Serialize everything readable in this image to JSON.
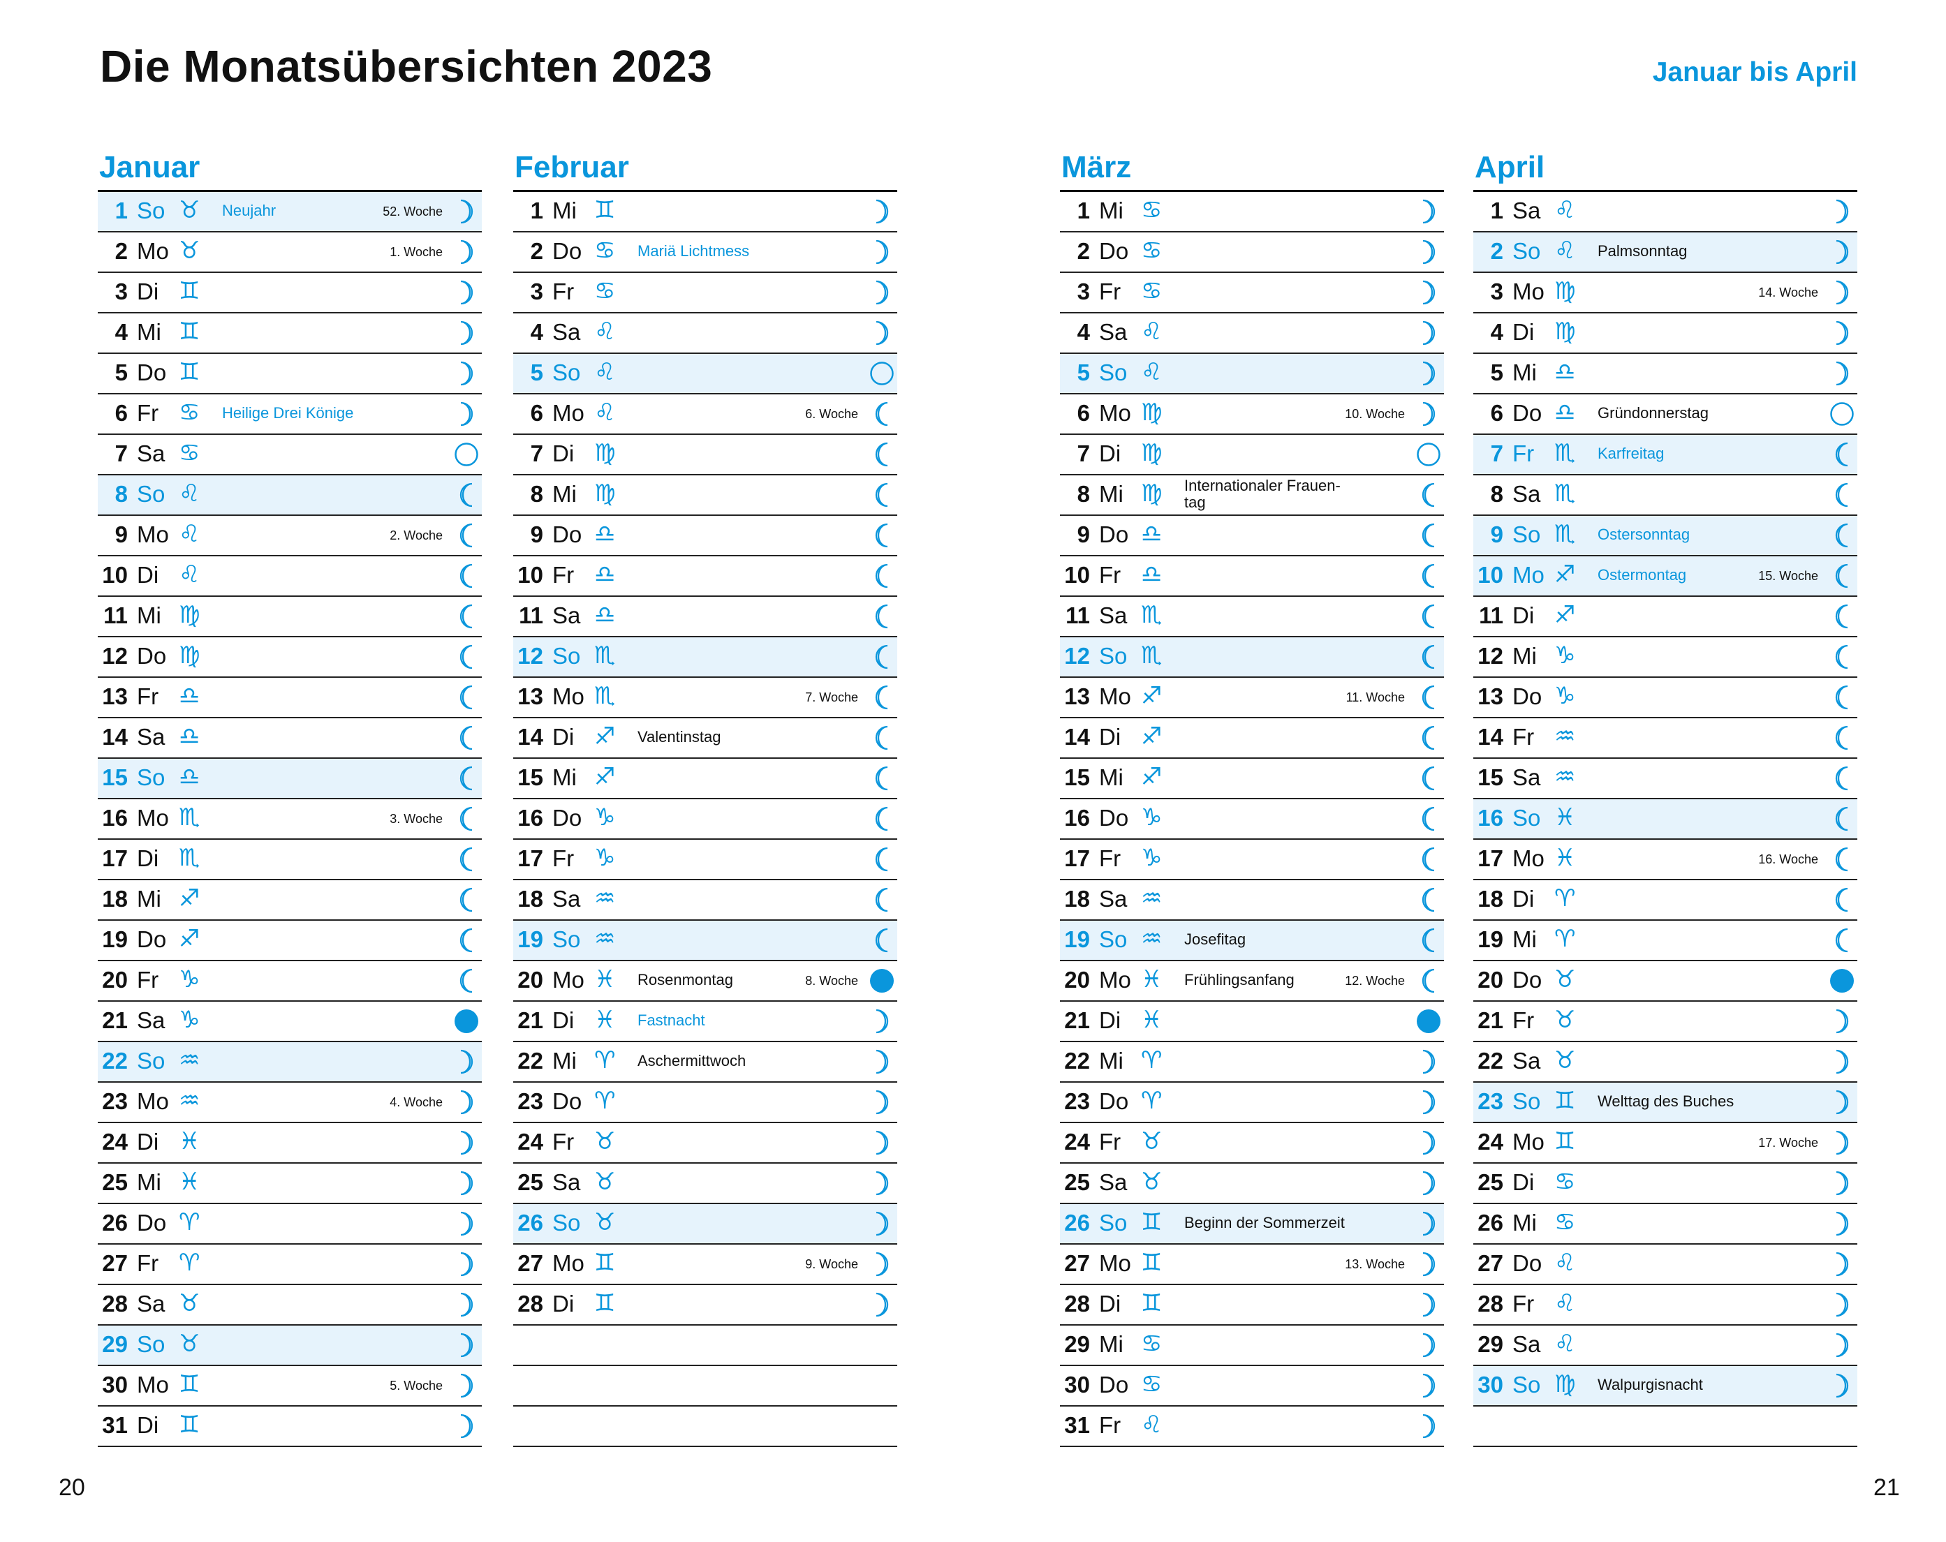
{
  "title": "Die Monatsübersichten 2023",
  "range": "Januar bis April",
  "page_left": "20",
  "page_right": "21",
  "accent_color": "#0a96dc",
  "highlight_color": "#e6f3fc",
  "months": [
    {
      "name": "Januar",
      "days": [
        {
          "d": "1",
          "wd": "So",
          "sign": "taurus",
          "moon": "waxing",
          "event": "Neujahr",
          "event_blue": true,
          "week": "52. Woche",
          "hl": true
        },
        {
          "d": "2",
          "wd": "Mo",
          "sign": "taurus",
          "moon": "waxing",
          "week": "1. Woche"
        },
        {
          "d": "3",
          "wd": "Di",
          "sign": "gemini",
          "moon": "waxing"
        },
        {
          "d": "4",
          "wd": "Mi",
          "sign": "gemini",
          "moon": "waxing"
        },
        {
          "d": "5",
          "wd": "Do",
          "sign": "gemini",
          "moon": "waxing"
        },
        {
          "d": "6",
          "wd": "Fr",
          "sign": "cancer",
          "moon": "waxing",
          "event": "Heilige Drei Könige",
          "event_blue": true
        },
        {
          "d": "7",
          "wd": "Sa",
          "sign": "cancer",
          "moon": "full"
        },
        {
          "d": "8",
          "wd": "So",
          "sign": "leo",
          "moon": "waning",
          "hl": true
        },
        {
          "d": "9",
          "wd": "Mo",
          "sign": "leo",
          "moon": "waning",
          "week": "2. Woche"
        },
        {
          "d": "10",
          "wd": "Di",
          "sign": "leo",
          "moon": "waning"
        },
        {
          "d": "11",
          "wd": "Mi",
          "sign": "virgo",
          "moon": "waning"
        },
        {
          "d": "12",
          "wd": "Do",
          "sign": "virgo",
          "moon": "waning"
        },
        {
          "d": "13",
          "wd": "Fr",
          "sign": "libra",
          "moon": "waning"
        },
        {
          "d": "14",
          "wd": "Sa",
          "sign": "libra",
          "moon": "waning"
        },
        {
          "d": "15",
          "wd": "So",
          "sign": "libra",
          "moon": "waning",
          "hl": true
        },
        {
          "d": "16",
          "wd": "Mo",
          "sign": "scorpio",
          "moon": "waning",
          "week": "3. Woche"
        },
        {
          "d": "17",
          "wd": "Di",
          "sign": "scorpio",
          "moon": "waning"
        },
        {
          "d": "18",
          "wd": "Mi",
          "sign": "sagittarius",
          "moon": "waning"
        },
        {
          "d": "19",
          "wd": "Do",
          "sign": "sagittarius",
          "moon": "waning"
        },
        {
          "d": "20",
          "wd": "Fr",
          "sign": "capricorn",
          "moon": "waning"
        },
        {
          "d": "21",
          "wd": "Sa",
          "sign": "capricorn",
          "moon": "new"
        },
        {
          "d": "22",
          "wd": "So",
          "sign": "aquarius",
          "moon": "waxing",
          "hl": true
        },
        {
          "d": "23",
          "wd": "Mo",
          "sign": "aquarius",
          "moon": "waxing",
          "week": "4. Woche"
        },
        {
          "d": "24",
          "wd": "Di",
          "sign": "pisces",
          "moon": "waxing"
        },
        {
          "d": "25",
          "wd": "Mi",
          "sign": "pisces",
          "moon": "waxing"
        },
        {
          "d": "26",
          "wd": "Do",
          "sign": "aries",
          "moon": "waxing"
        },
        {
          "d": "27",
          "wd": "Fr",
          "sign": "aries",
          "moon": "waxing"
        },
        {
          "d": "28",
          "wd": "Sa",
          "sign": "taurus",
          "moon": "waxing"
        },
        {
          "d": "29",
          "wd": "So",
          "sign": "taurus",
          "moon": "waxing",
          "hl": true
        },
        {
          "d": "30",
          "wd": "Mo",
          "sign": "gemini",
          "moon": "waxing",
          "week": "5. Woche"
        },
        {
          "d": "31",
          "wd": "Di",
          "sign": "gemini",
          "moon": "waxing"
        }
      ]
    },
    {
      "name": "Februar",
      "days": [
        {
          "d": "1",
          "wd": "Mi",
          "sign": "gemini",
          "moon": "waxing"
        },
        {
          "d": "2",
          "wd": "Do",
          "sign": "cancer",
          "moon": "waxing",
          "event": "Mariä Lichtmess",
          "event_blue": true
        },
        {
          "d": "3",
          "wd": "Fr",
          "sign": "cancer",
          "moon": "waxing"
        },
        {
          "d": "4",
          "wd": "Sa",
          "sign": "leo",
          "moon": "waxing"
        },
        {
          "d": "5",
          "wd": "So",
          "sign": "leo",
          "moon": "full",
          "hl": true
        },
        {
          "d": "6",
          "wd": "Mo",
          "sign": "leo",
          "moon": "waning",
          "week": "6. Woche"
        },
        {
          "d": "7",
          "wd": "Di",
          "sign": "virgo",
          "moon": "waning"
        },
        {
          "d": "8",
          "wd": "Mi",
          "sign": "virgo",
          "moon": "waning"
        },
        {
          "d": "9",
          "wd": "Do",
          "sign": "libra",
          "moon": "waning"
        },
        {
          "d": "10",
          "wd": "Fr",
          "sign": "libra",
          "moon": "waning"
        },
        {
          "d": "11",
          "wd": "Sa",
          "sign": "libra",
          "moon": "waning"
        },
        {
          "d": "12",
          "wd": "So",
          "sign": "scorpio",
          "moon": "waning",
          "hl": true
        },
        {
          "d": "13",
          "wd": "Mo",
          "sign": "scorpio",
          "moon": "waning",
          "week": "7. Woche"
        },
        {
          "d": "14",
          "wd": "Di",
          "sign": "sagittarius",
          "moon": "waning",
          "event": "Valentinstag"
        },
        {
          "d": "15",
          "wd": "Mi",
          "sign": "sagittarius",
          "moon": "waning"
        },
        {
          "d": "16",
          "wd": "Do",
          "sign": "capricorn",
          "moon": "waning"
        },
        {
          "d": "17",
          "wd": "Fr",
          "sign": "capricorn",
          "moon": "waning"
        },
        {
          "d": "18",
          "wd": "Sa",
          "sign": "aquarius",
          "moon": "waning"
        },
        {
          "d": "19",
          "wd": "So",
          "sign": "aquarius",
          "moon": "waning",
          "hl": true
        },
        {
          "d": "20",
          "wd": "Mo",
          "sign": "pisces",
          "moon": "new",
          "event": "Rosenmontag",
          "week": "8. Woche"
        },
        {
          "d": "21",
          "wd": "Di",
          "sign": "pisces",
          "moon": "waxing",
          "event": "Fastnacht",
          "event_blue": true
        },
        {
          "d": "22",
          "wd": "Mi",
          "sign": "aries",
          "moon": "waxing",
          "event": "Aschermittwoch"
        },
        {
          "d": "23",
          "wd": "Do",
          "sign": "aries",
          "moon": "waxing"
        },
        {
          "d": "24",
          "wd": "Fr",
          "sign": "taurus",
          "moon": "waxing"
        },
        {
          "d": "25",
          "wd": "Sa",
          "sign": "taurus",
          "moon": "waxing"
        },
        {
          "d": "26",
          "wd": "So",
          "sign": "taurus",
          "moon": "waxing",
          "hl": true
        },
        {
          "d": "27",
          "wd": "Mo",
          "sign": "gemini",
          "moon": "waxing",
          "week": "9. Woche"
        },
        {
          "d": "28",
          "wd": "Di",
          "sign": "gemini",
          "moon": "waxing"
        }
      ]
    },
    {
      "name": "März",
      "days": [
        {
          "d": "1",
          "wd": "Mi",
          "sign": "cancer",
          "moon": "waxing"
        },
        {
          "d": "2",
          "wd": "Do",
          "sign": "cancer",
          "moon": "waxing"
        },
        {
          "d": "3",
          "wd": "Fr",
          "sign": "cancer",
          "moon": "waxing"
        },
        {
          "d": "4",
          "wd": "Sa",
          "sign": "leo",
          "moon": "waxing"
        },
        {
          "d": "5",
          "wd": "So",
          "sign": "leo",
          "moon": "waxing",
          "hl": true
        },
        {
          "d": "6",
          "wd": "Mo",
          "sign": "virgo",
          "moon": "waxing",
          "week": "10. Woche"
        },
        {
          "d": "7",
          "wd": "Di",
          "sign": "virgo",
          "moon": "full"
        },
        {
          "d": "8",
          "wd": "Mi",
          "sign": "virgo",
          "moon": "waning",
          "event": "Internationaler Frauen-tag"
        },
        {
          "d": "9",
          "wd": "Do",
          "sign": "libra",
          "moon": "waning"
        },
        {
          "d": "10",
          "wd": "Fr",
          "sign": "libra",
          "moon": "waning"
        },
        {
          "d": "11",
          "wd": "Sa",
          "sign": "scorpio",
          "moon": "waning"
        },
        {
          "d": "12",
          "wd": "So",
          "sign": "scorpio",
          "moon": "waning",
          "hl": true
        },
        {
          "d": "13",
          "wd": "Mo",
          "sign": "sagittarius",
          "moon": "waning",
          "week": "11. Woche"
        },
        {
          "d": "14",
          "wd": "Di",
          "sign": "sagittarius",
          "moon": "waning"
        },
        {
          "d": "15",
          "wd": "Mi",
          "sign": "sagittarius",
          "moon": "waning"
        },
        {
          "d": "16",
          "wd": "Do",
          "sign": "capricorn",
          "moon": "waning"
        },
        {
          "d": "17",
          "wd": "Fr",
          "sign": "capricorn",
          "moon": "waning"
        },
        {
          "d": "18",
          "wd": "Sa",
          "sign": "aquarius",
          "moon": "waning"
        },
        {
          "d": "19",
          "wd": "So",
          "sign": "aquarius",
          "moon": "waning",
          "event": "Josefitag",
          "hl": true
        },
        {
          "d": "20",
          "wd": "Mo",
          "sign": "pisces",
          "moon": "waning",
          "event": "Frühlingsanfang",
          "week": "12. Woche"
        },
        {
          "d": "21",
          "wd": "Di",
          "sign": "pisces",
          "moon": "new"
        },
        {
          "d": "22",
          "wd": "Mi",
          "sign": "aries",
          "moon": "waxing"
        },
        {
          "d": "23",
          "wd": "Do",
          "sign": "aries",
          "moon": "waxing"
        },
        {
          "d": "24",
          "wd": "Fr",
          "sign": "taurus",
          "moon": "waxing"
        },
        {
          "d": "25",
          "wd": "Sa",
          "sign": "taurus",
          "moon": "waxing"
        },
        {
          "d": "26",
          "wd": "So",
          "sign": "gemini",
          "moon": "waxing",
          "event": "Beginn der Sommerzeit",
          "hl": true
        },
        {
          "d": "27",
          "wd": "Mo",
          "sign": "gemini",
          "moon": "waxing",
          "week": "13. Woche"
        },
        {
          "d": "28",
          "wd": "Di",
          "sign": "gemini",
          "moon": "waxing"
        },
        {
          "d": "29",
          "wd": "Mi",
          "sign": "cancer",
          "moon": "waxing"
        },
        {
          "d": "30",
          "wd": "Do",
          "sign": "cancer",
          "moon": "waxing"
        },
        {
          "d": "31",
          "wd": "Fr",
          "sign": "leo",
          "moon": "waxing"
        }
      ]
    },
    {
      "name": "April",
      "days": [
        {
          "d": "1",
          "wd": "Sa",
          "sign": "leo",
          "moon": "waxing"
        },
        {
          "d": "2",
          "wd": "So",
          "sign": "leo",
          "moon": "waxing",
          "event": "Palmsonntag",
          "hl": true
        },
        {
          "d": "3",
          "wd": "Mo",
          "sign": "virgo",
          "moon": "waxing",
          "week": "14. Woche"
        },
        {
          "d": "4",
          "wd": "Di",
          "sign": "virgo",
          "moon": "waxing"
        },
        {
          "d": "5",
          "wd": "Mi",
          "sign": "libra",
          "moon": "waxing"
        },
        {
          "d": "6",
          "wd": "Do",
          "sign": "libra",
          "moon": "full",
          "event": "Gründonnerstag"
        },
        {
          "d": "7",
          "wd": "Fr",
          "sign": "scorpio",
          "moon": "waning",
          "event": "Karfreitag",
          "event_blue": true,
          "hl": true
        },
        {
          "d": "8",
          "wd": "Sa",
          "sign": "scorpio",
          "moon": "waning"
        },
        {
          "d": "9",
          "wd": "So",
          "sign": "scorpio",
          "moon": "waning",
          "event": "Ostersonntag",
          "event_blue": true,
          "hl": true
        },
        {
          "d": "10",
          "wd": "Mo",
          "sign": "sagittarius",
          "moon": "waning",
          "event": "Ostermontag",
          "event_blue": true,
          "week": "15. Woche",
          "hl": true
        },
        {
          "d": "11",
          "wd": "Di",
          "sign": "sagittarius",
          "moon": "waning"
        },
        {
          "d": "12",
          "wd": "Mi",
          "sign": "capricorn",
          "moon": "waning"
        },
        {
          "d": "13",
          "wd": "Do",
          "sign": "capricorn",
          "moon": "waning"
        },
        {
          "d": "14",
          "wd": "Fr",
          "sign": "aquarius",
          "moon": "waning"
        },
        {
          "d": "15",
          "wd": "Sa",
          "sign": "aquarius",
          "moon": "waning"
        },
        {
          "d": "16",
          "wd": "So",
          "sign": "pisces",
          "moon": "waning",
          "hl": true
        },
        {
          "d": "17",
          "wd": "Mo",
          "sign": "pisces",
          "moon": "waning",
          "week": "16. Woche"
        },
        {
          "d": "18",
          "wd": "Di",
          "sign": "aries",
          "moon": "waning"
        },
        {
          "d": "19",
          "wd": "Mi",
          "sign": "aries",
          "moon": "waning"
        },
        {
          "d": "20",
          "wd": "Do",
          "sign": "taurus",
          "moon": "new"
        },
        {
          "d": "21",
          "wd": "Fr",
          "sign": "taurus",
          "moon": "waxing"
        },
        {
          "d": "22",
          "wd": "Sa",
          "sign": "taurus",
          "moon": "waxing"
        },
        {
          "d": "23",
          "wd": "So",
          "sign": "gemini",
          "moon": "waxing",
          "event": "Welttag des Buches",
          "hl": true
        },
        {
          "d": "24",
          "wd": "Mo",
          "sign": "gemini",
          "moon": "waxing",
          "week": "17. Woche"
        },
        {
          "d": "25",
          "wd": "Di",
          "sign": "cancer",
          "moon": "waxing"
        },
        {
          "d": "26",
          "wd": "Mi",
          "sign": "cancer",
          "moon": "waxing"
        },
        {
          "d": "27",
          "wd": "Do",
          "sign": "leo",
          "moon": "waxing"
        },
        {
          "d": "28",
          "wd": "Fr",
          "sign": "leo",
          "moon": "waxing"
        },
        {
          "d": "29",
          "wd": "Sa",
          "sign": "leo",
          "moon": "waxing"
        },
        {
          "d": "30",
          "wd": "So",
          "sign": "virgo",
          "moon": "waxing",
          "event": "Walpurgisnacht",
          "hl": true
        }
      ]
    }
  ]
}
